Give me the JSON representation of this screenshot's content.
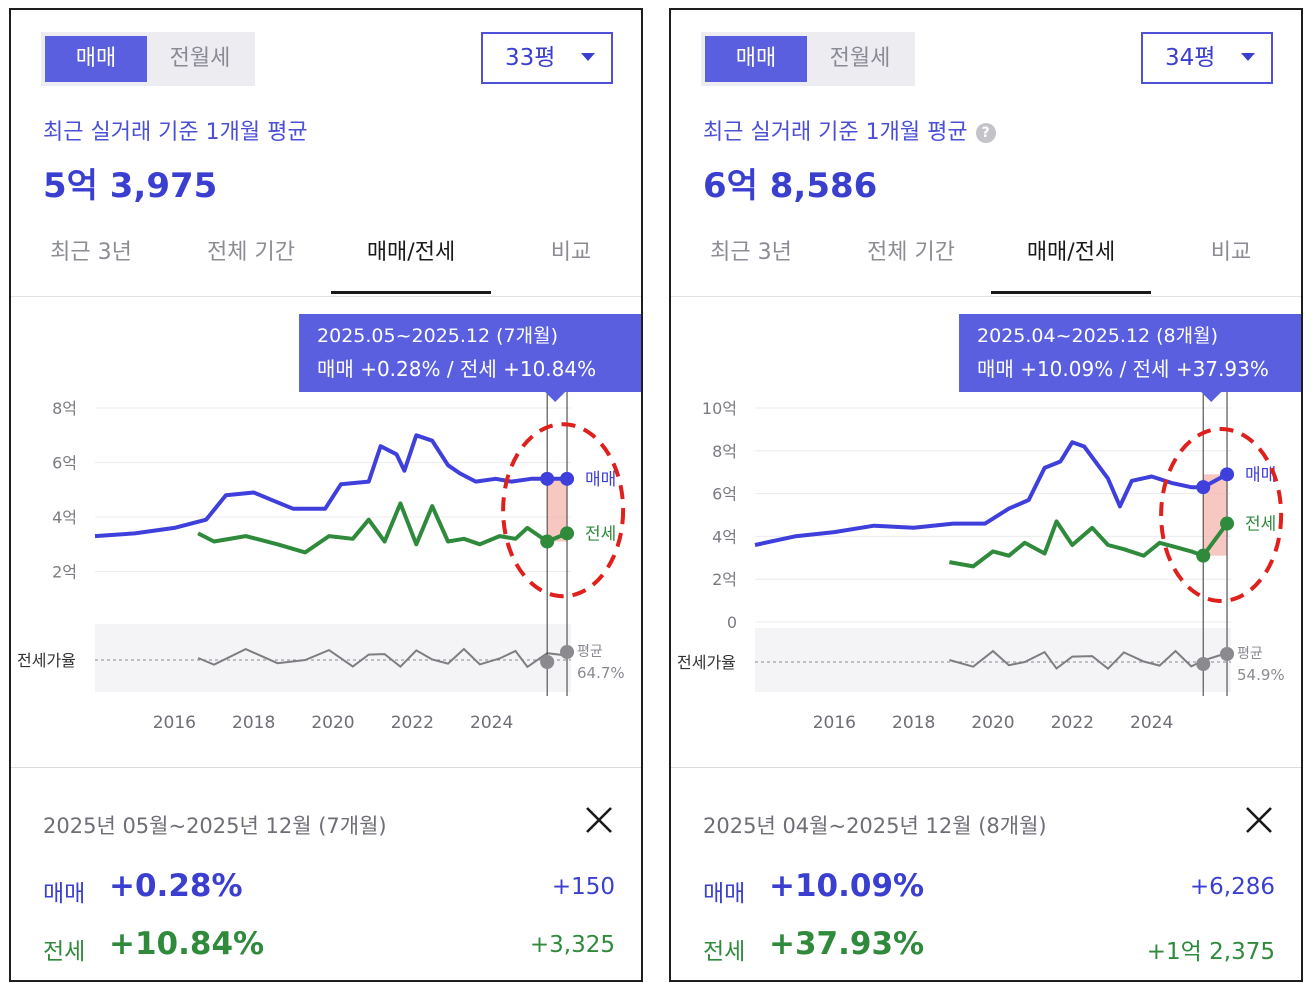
{
  "panels": [
    {
      "tabs_seg": {
        "buy": "매매",
        "rent": "전월세"
      },
      "size": "33평",
      "subtitle": "최근 실거래 기준 1개월 평균",
      "show_help": false,
      "price": "5억 3,975",
      "tabs": [
        "최근 3년",
        "전체 기간",
        "매매/전세",
        "비교"
      ],
      "tooltip": {
        "line1": "2025.05~2025.12 (7개월)",
        "line2": "매매 +0.28%  /  전세 +10.84%"
      },
      "chart_data": {
        "type": "line",
        "y_ticks": [
          "8억",
          "6억",
          "4억",
          "2억"
        ],
        "x_ticks": [
          "2016",
          "2018",
          "2020",
          "2022",
          "2024"
        ],
        "series": [
          {
            "name": "매매",
            "color": "#3f3fdc",
            "points": [
              [
                2014.0,
                3.3
              ],
              [
                2015.0,
                3.4
              ],
              [
                2016.0,
                3.6
              ],
              [
                2016.8,
                3.9
              ],
              [
                2017.3,
                4.8
              ],
              [
                2018.0,
                4.9
              ],
              [
                2018.5,
                4.6
              ],
              [
                2019.0,
                4.3
              ],
              [
                2019.8,
                4.3
              ],
              [
                2020.2,
                5.2
              ],
              [
                2020.9,
                5.3
              ],
              [
                2021.2,
                6.6
              ],
              [
                2021.6,
                6.3
              ],
              [
                2021.8,
                5.7
              ],
              [
                2022.1,
                7.0
              ],
              [
                2022.5,
                6.8
              ],
              [
                2022.9,
                5.9
              ],
              [
                2023.2,
                5.6
              ],
              [
                2023.6,
                5.3
              ],
              [
                2024.1,
                5.4
              ],
              [
                2024.5,
                5.3
              ],
              [
                2025.0,
                5.4
              ],
              [
                2025.4,
                5.4
              ],
              [
                2025.9,
                5.4
              ]
            ]
          },
          {
            "name": "전세",
            "color": "#2f8a3c",
            "points": [
              [
                2016.6,
                3.4
              ],
              [
                2017.0,
                3.1
              ],
              [
                2017.8,
                3.3
              ],
              [
                2018.6,
                3.0
              ],
              [
                2019.3,
                2.7
              ],
              [
                2019.9,
                3.3
              ],
              [
                2020.5,
                3.2
              ],
              [
                2020.9,
                3.9
              ],
              [
                2021.3,
                3.1
              ],
              [
                2021.7,
                4.5
              ],
              [
                2022.1,
                3.0
              ],
              [
                2022.5,
                4.4
              ],
              [
                2022.9,
                3.1
              ],
              [
                2023.3,
                3.2
              ],
              [
                2023.7,
                3.0
              ],
              [
                2024.2,
                3.3
              ],
              [
                2024.6,
                3.2
              ],
              [
                2024.9,
                3.6
              ],
              [
                2025.4,
                3.1
              ],
              [
                2025.9,
                3.4
              ]
            ]
          }
        ],
        "sub_label": "전세가율",
        "avg_label": "평균",
        "avg_value": "64.7%",
        "legend": [
          "매매",
          "전세"
        ],
        "highlight": {
          "from": 2025.4,
          "to": 2025.9
        }
      },
      "period_text": "2025년 05월~2025년 12월 (7개월)",
      "buy": {
        "label": "매매",
        "pct": "+0.28%",
        "amt": "+150"
      },
      "rent": {
        "label": "전세",
        "pct": "+10.84%",
        "amt": "+3,325"
      }
    },
    {
      "tabs_seg": {
        "buy": "매매",
        "rent": "전월세"
      },
      "size": "34평",
      "subtitle": "최근 실거래 기준 1개월 평균",
      "show_help": true,
      "price": "6억 8,586",
      "tabs": [
        "최근 3년",
        "전체 기간",
        "매매/전세",
        "비교"
      ],
      "tooltip": {
        "line1": "2025.04~2025.12 (8개월)",
        "line2": "매매 +10.09%  /  전세 +37.93%"
      },
      "chart_data": {
        "type": "line",
        "y_ticks": [
          "10억",
          "8억",
          "6억",
          "4억",
          "2억",
          "0"
        ],
        "x_ticks": [
          "2016",
          "2018",
          "2020",
          "2022",
          "2024"
        ],
        "series": [
          {
            "name": "매매",
            "color": "#3f3fdc",
            "points": [
              [
                2014.0,
                3.6
              ],
              [
                2015.0,
                4.0
              ],
              [
                2016.0,
                4.2
              ],
              [
                2017.0,
                4.5
              ],
              [
                2018.0,
                4.4
              ],
              [
                2019.0,
                4.6
              ],
              [
                2019.8,
                4.6
              ],
              [
                2020.4,
                5.3
              ],
              [
                2020.9,
                5.7
              ],
              [
                2021.3,
                7.2
              ],
              [
                2021.7,
                7.5
              ],
              [
                2022.0,
                8.4
              ],
              [
                2022.3,
                8.2
              ],
              [
                2022.9,
                6.7
              ],
              [
                2023.2,
                5.4
              ],
              [
                2023.5,
                6.6
              ],
              [
                2024.0,
                6.8
              ],
              [
                2024.5,
                6.5
              ],
              [
                2025.0,
                6.3
              ],
              [
                2025.3,
                6.3
              ],
              [
                2025.9,
                6.9
              ]
            ]
          },
          {
            "name": "전세",
            "color": "#2f8a3c",
            "points": [
              [
                2018.9,
                2.8
              ],
              [
                2019.5,
                2.6
              ],
              [
                2020.0,
                3.3
              ],
              [
                2020.4,
                3.1
              ],
              [
                2020.8,
                3.7
              ],
              [
                2021.3,
                3.2
              ],
              [
                2021.6,
                4.7
              ],
              [
                2022.0,
                3.6
              ],
              [
                2022.5,
                4.4
              ],
              [
                2022.9,
                3.6
              ],
              [
                2023.3,
                3.4
              ],
              [
                2023.8,
                3.1
              ],
              [
                2024.2,
                3.7
              ],
              [
                2024.6,
                3.5
              ],
              [
                2025.0,
                3.3
              ],
              [
                2025.3,
                3.1
              ],
              [
                2025.9,
                4.6
              ]
            ]
          }
        ],
        "sub_label": "전세가율",
        "avg_label": "평균",
        "avg_value": "54.9%",
        "legend": [
          "매매",
          "전세"
        ],
        "highlight": {
          "from": 2025.3,
          "to": 2025.9
        }
      },
      "period_text": "2025년 04월~2025년 12월 (8개월)",
      "buy": {
        "label": "매매",
        "pct": "+10.09%",
        "amt": "+6,286"
      },
      "rent": {
        "label": "전세",
        "pct": "+37.93%",
        "amt": "+1억 2,375"
      }
    }
  ]
}
